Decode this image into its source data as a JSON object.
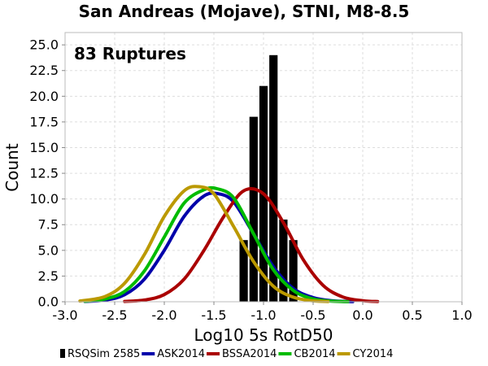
{
  "chart_data": {
    "type": "bar",
    "title": "San Andreas (Mojave), STNI, M8-8.5",
    "xlabel": "Log10 5s RotD50",
    "ylabel": "Count",
    "annotation": "83 Ruptures",
    "xlim": [
      -3.0,
      1.0
    ],
    "ylim": [
      0,
      26.2
    ],
    "xticks": [
      "-3.0",
      "-2.5",
      "-2.0",
      "-1.5",
      "-1.0",
      "-0.5",
      "0.0",
      "0.5",
      "1.0"
    ],
    "yticks": [
      "0.0",
      "2.5",
      "5.0",
      "7.5",
      "10.0",
      "12.5",
      "15.0",
      "17.5",
      "20.0",
      "22.5",
      "25.0"
    ],
    "grid": true,
    "legend_position": "bottom",
    "histogram": {
      "name": "RSQSim 2585",
      "color": "#000000",
      "bin_width": 0.1,
      "bins": [
        {
          "x": -1.2,
          "count": 6
        },
        {
          "x": -1.1,
          "count": 18
        },
        {
          "x": -1.0,
          "count": 21
        },
        {
          "x": -0.9,
          "count": 24
        },
        {
          "x": -0.8,
          "count": 8
        },
        {
          "x": -0.7,
          "count": 6
        }
      ]
    },
    "series": [
      {
        "name": "ASK2014",
        "color": "#0000aa",
        "type": "line",
        "x": [
          -2.8,
          -2.6,
          -2.4,
          -2.2,
          -2.0,
          -1.8,
          -1.6,
          -1.45,
          -1.3,
          -1.1,
          -0.9,
          -0.7,
          -0.5,
          -0.3,
          -0.1
        ],
        "y": [
          0.03,
          0.16,
          0.68,
          2.2,
          5.0,
          8.3,
          10.3,
          10.5,
          9.7,
          6.6,
          3.4,
          1.3,
          0.4,
          0.09,
          0.01
        ]
      },
      {
        "name": "BSSA2014",
        "color": "#aa0000",
        "type": "line",
        "x": [
          -2.4,
          -2.2,
          -2.0,
          -1.8,
          -1.6,
          -1.4,
          -1.2,
          -1.0,
          -0.8,
          -0.6,
          -0.4,
          -0.2,
          0.0,
          0.15
        ],
        "y": [
          0.03,
          0.17,
          0.7,
          2.2,
          5.0,
          8.3,
          10.8,
          10.5,
          7.7,
          4.1,
          1.6,
          0.46,
          0.1,
          0.02
        ]
      },
      {
        "name": "CB2014",
        "color": "#00bb00",
        "type": "line",
        "x": [
          -2.8,
          -2.6,
          -2.4,
          -2.2,
          -2.0,
          -1.8,
          -1.6,
          -1.47,
          -1.3,
          -1.1,
          -0.9,
          -0.7,
          -0.5,
          -0.3,
          -0.15
        ],
        "y": [
          0.05,
          0.26,
          1.0,
          3.0,
          6.3,
          9.6,
          10.9,
          11.0,
          10.1,
          6.6,
          3.1,
          1.1,
          0.27,
          0.05,
          0.01
        ]
      },
      {
        "name": "CY2014",
        "color": "#bb9900",
        "type": "line",
        "x": [
          -2.85,
          -2.6,
          -2.4,
          -2.2,
          -2.0,
          -1.8,
          -1.65,
          -1.5,
          -1.3,
          -1.1,
          -0.9,
          -0.7,
          -0.5,
          -0.35
        ],
        "y": [
          0.07,
          0.5,
          1.8,
          4.6,
          8.3,
          10.8,
          11.2,
          10.5,
          7.3,
          3.9,
          1.5,
          0.44,
          0.09,
          0.02
        ]
      }
    ]
  }
}
